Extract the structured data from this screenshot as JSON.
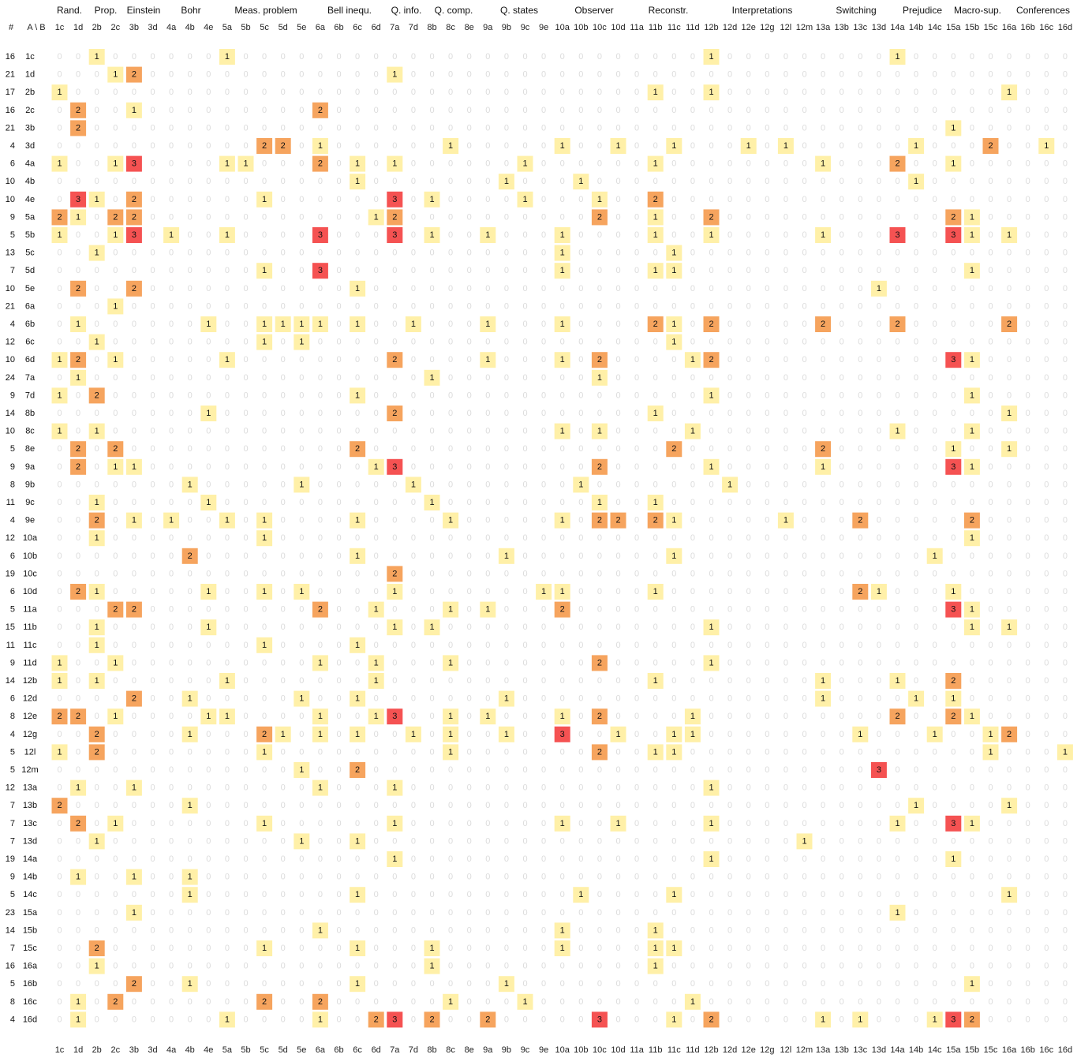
{
  "chart_data": {
    "type": "heatmap",
    "corner": {
      "num": "#",
      "ab": "A \\ B"
    },
    "groups": [
      "Rand.",
      "Prop.",
      "Einstein",
      "Bohr",
      "Meas. problem",
      "Bell inequ.",
      "Q. info.",
      "Q. comp.",
      "Q. states",
      "Observer",
      "Reconstr.",
      "Interpretations",
      "Switching",
      "Prejudice",
      "Macro-sup.",
      "Conferences"
    ],
    "columns": [
      "1c",
      "1d",
      "2b",
      "2c",
      "3b",
      "3d",
      "4a",
      "4b",
      "4e",
      "5a",
      "5b",
      "5c",
      "5d",
      "5e",
      "6a",
      "6b",
      "6c",
      "6d",
      "7a",
      "7d",
      "8b",
      "8c",
      "8e",
      "9a",
      "9b",
      "9c",
      "9e",
      "10a",
      "10b",
      "10c",
      "10d",
      "11a",
      "11b",
      "11c",
      "11d",
      "12b",
      "12d",
      "12e",
      "12g",
      "12l",
      "12m",
      "13a",
      "13b",
      "13c",
      "13d",
      "14a",
      "14b",
      "14c",
      "15a",
      "15b",
      "15c",
      "16a",
      "16b",
      "16c",
      "16d"
    ],
    "rows": [
      {
        "label": "1c",
        "count": "16",
        "cells": {
          "2b": 1,
          "5a": 1,
          "12b": 1,
          "14a": 1
        }
      },
      {
        "label": "1d",
        "count": "21",
        "cells": {
          "2c": 1,
          "3b": 2,
          "7a": 1
        }
      },
      {
        "label": "2b",
        "count": "17",
        "cells": {
          "1c": 1,
          "11b": 1,
          "12b": 1,
          "16a": 1
        }
      },
      {
        "label": "2c",
        "count": "16",
        "cells": {
          "1d": 2,
          "3b": 1,
          "6a": 2
        }
      },
      {
        "label": "3b",
        "count": "21",
        "cells": {
          "1d": 2,
          "15a": 1
        }
      },
      {
        "label": "3d",
        "count": "4",
        "cells": {
          "5c": 2,
          "5d": 2,
          "6a": 1,
          "8c": 1,
          "10a": 1,
          "10d": 1,
          "11c": 1,
          "12e": 1,
          "12l": 1,
          "14b": 1,
          "15c": 2,
          "16c": 1
        }
      },
      {
        "label": "4a",
        "count": "6",
        "cells": {
          "1c": 1,
          "2c": 1,
          "3b": 3,
          "5a": 1,
          "5b": 1,
          "6a": 2,
          "6c": 1,
          "7a": 1,
          "9c": 1,
          "11b": 1,
          "13a": 1,
          "14a": 2,
          "15a": 1
        }
      },
      {
        "label": "4b",
        "count": "10",
        "cells": {
          "6c": 1,
          "9b": 1,
          "10b": 1,
          "14b": 1
        }
      },
      {
        "label": "4e",
        "count": "10",
        "cells": {
          "1d": 3,
          "2b": 1,
          "3b": 2,
          "5c": 1,
          "7a": 3,
          "8b": 1,
          "9c": 1,
          "10c": 1,
          "11b": 2
        }
      },
      {
        "label": "5a",
        "count": "9",
        "cells": {
          "1c": 2,
          "1d": 1,
          "2c": 2,
          "3b": 2,
          "6d": 1,
          "7a": 2,
          "10c": 2,
          "11b": 1,
          "12b": 2,
          "15a": 2,
          "15b": 1
        }
      },
      {
        "label": "5b",
        "count": "5",
        "cells": {
          "1c": 1,
          "2c": 1,
          "3b": 3,
          "4a": 1,
          "5a": 1,
          "6a": 3,
          "7a": 3,
          "8b": 1,
          "9a": 1,
          "10a": 1,
          "11b": 1,
          "12b": 1,
          "13a": 1,
          "14a": 3,
          "15a": 3,
          "15b": 1,
          "16a": 1
        }
      },
      {
        "label": "5c",
        "count": "13",
        "cells": {
          "2b": 1,
          "10a": 1,
          "11c": 1
        }
      },
      {
        "label": "5d",
        "count": "7",
        "cells": {
          "5c": 1,
          "6a": 3,
          "10a": 1,
          "11b": 1,
          "11c": 1,
          "15b": 1
        }
      },
      {
        "label": "5e",
        "count": "10",
        "cells": {
          "1d": 2,
          "3b": 2,
          "6c": 1,
          "13d": 1
        }
      },
      {
        "label": "6a",
        "count": "21",
        "cells": {
          "2c": 1
        }
      },
      {
        "label": "6b",
        "count": "4",
        "cells": {
          "1d": 1,
          "4e": 1,
          "5c": 1,
          "5d": 1,
          "5e": 1,
          "6a": 1,
          "6c": 1,
          "7d": 1,
          "9a": 1,
          "10a": 1,
          "11b": 2,
          "11c": 1,
          "12b": 2,
          "13a": 2,
          "14a": 2,
          "16a": 2
        }
      },
      {
        "label": "6c",
        "count": "12",
        "cells": {
          "2b": 1,
          "5c": 1,
          "5e": 1,
          "11c": 1
        }
      },
      {
        "label": "6d",
        "count": "10",
        "cells": {
          "1c": 1,
          "1d": 2,
          "2c": 1,
          "5a": 1,
          "7a": 2,
          "9a": 1,
          "10a": 1,
          "10c": 2,
          "11d": 1,
          "12b": 2,
          "15a": 3,
          "15b": 1
        }
      },
      {
        "label": "7a",
        "count": "24",
        "cells": {
          "1d": 1,
          "8b": 1,
          "10c": 1
        }
      },
      {
        "label": "7d",
        "count": "9",
        "cells": {
          "1c": 1,
          "2b": 2,
          "6c": 1,
          "12b": 1,
          "15b": 1
        }
      },
      {
        "label": "8b",
        "count": "14",
        "cells": {
          "4e": 1,
          "7a": 2,
          "11b": 1,
          "16a": 1
        }
      },
      {
        "label": "8c",
        "count": "10",
        "cells": {
          "1c": 1,
          "2b": 1,
          "10a": 1,
          "10c": 1,
          "11d": 1,
          "14a": 1,
          "15b": 1
        }
      },
      {
        "label": "8e",
        "count": "5",
        "cells": {
          "1d": 2,
          "2c": 2,
          "6c": 2,
          "11c": 2,
          "13a": 2,
          "15a": 1,
          "16a": 1
        }
      },
      {
        "label": "9a",
        "count": "9",
        "cells": {
          "1d": 2,
          "2c": 1,
          "3b": 1,
          "6d": 1,
          "7a": 3,
          "10c": 2,
          "12b": 1,
          "13a": 1,
          "15a": 3,
          "15b": 1
        }
      },
      {
        "label": "9b",
        "count": "8",
        "cells": {
          "4b": 1,
          "5e": 1,
          "7d": 1,
          "10b": 1,
          "12d": 1
        }
      },
      {
        "label": "9c",
        "count": "11",
        "cells": {
          "2b": 1,
          "4e": 1,
          "8b": 1,
          "10c": 1,
          "11b": 1
        }
      },
      {
        "label": "9e",
        "count": "4",
        "cells": {
          "2b": 2,
          "3b": 1,
          "4a": 1,
          "5a": 1,
          "5c": 1,
          "6c": 1,
          "8c": 1,
          "10a": 1,
          "10c": 2,
          "10d": 2,
          "11b": 2,
          "11c": 1,
          "12l": 1,
          "13c": 2,
          "15b": 2
        }
      },
      {
        "label": "10a",
        "count": "12",
        "cells": {
          "2b": 1,
          "5c": 1,
          "15b": 1
        }
      },
      {
        "label": "10b",
        "count": "6",
        "cells": {
          "4b": 2,
          "6c": 1,
          "9b": 1,
          "11c": 1,
          "14c": 1
        }
      },
      {
        "label": "10c",
        "count": "19",
        "cells": {
          "7a": 2
        }
      },
      {
        "label": "10d",
        "count": "6",
        "cells": {
          "1d": 2,
          "2b": 1,
          "4e": 1,
          "5c": 1,
          "5e": 1,
          "7a": 1,
          "9e": 1,
          "10a": 1,
          "11b": 1,
          "13c": 2,
          "13d": 1,
          "15a": 1
        }
      },
      {
        "label": "11a",
        "count": "5",
        "cells": {
          "2c": 2,
          "3b": 2,
          "6a": 2,
          "6d": 1,
          "8c": 1,
          "9a": 1,
          "10a": 2,
          "15a": 3,
          "15b": 1
        }
      },
      {
        "label": "11b",
        "count": "15",
        "cells": {
          "2b": 1,
          "4e": 1,
          "7a": 1,
          "8b": 1,
          "12b": 1,
          "15b": 1,
          "16a": 1
        }
      },
      {
        "label": "11c",
        "count": "11",
        "cells": {
          "2b": 1,
          "5c": 1,
          "6c": 1
        }
      },
      {
        "label": "11d",
        "count": "9",
        "cells": {
          "1c": 1,
          "2c": 1,
          "6a": 1,
          "6d": 1,
          "8c": 1,
          "10c": 2,
          "12b": 1
        }
      },
      {
        "label": "12b",
        "count": "14",
        "cells": {
          "1c": 1,
          "2b": 1,
          "5a": 1,
          "6d": 1,
          "11b": 1,
          "13a": 1,
          "14a": 1,
          "15a": 2
        }
      },
      {
        "label": "12d",
        "count": "6",
        "cells": {
          "3b": 2,
          "4b": 1,
          "5e": 1,
          "6c": 1,
          "9b": 1,
          "13a": 1,
          "14b": 1,
          "15a": 1
        }
      },
      {
        "label": "12e",
        "count": "8",
        "cells": {
          "1c": 2,
          "1d": 2,
          "2c": 1,
          "4e": 1,
          "5a": 1,
          "6a": 1,
          "6d": 1,
          "7a": 3,
          "8c": 1,
          "9a": 1,
          "10a": 1,
          "10c": 2,
          "11d": 1,
          "14a": 2,
          "15a": 2,
          "15b": 1
        }
      },
      {
        "label": "12g",
        "count": "4",
        "cells": {
          "2b": 2,
          "4b": 1,
          "5c": 2,
          "5d": 1,
          "6a": 1,
          "6c": 1,
          "7d": 1,
          "8c": 1,
          "9b": 1,
          "10a": 3,
          "10d": 1,
          "11c": 1,
          "11d": 1,
          "13c": 1,
          "14c": 1,
          "15c": 1,
          "16a": 2
        }
      },
      {
        "label": "12l",
        "count": "5",
        "cells": {
          "1c": 1,
          "2b": 2,
          "5c": 1,
          "8c": 1,
          "10c": 2,
          "11b": 1,
          "11c": 1,
          "15c": 1,
          "16d": 1
        }
      },
      {
        "label": "12m",
        "count": "5",
        "cells": {
          "5e": 1,
          "6c": 2,
          "13d": 3
        }
      },
      {
        "label": "13a",
        "count": "12",
        "cells": {
          "1d": 1,
          "3b": 1,
          "6a": 1,
          "7a": 1,
          "12b": 1
        }
      },
      {
        "label": "13b",
        "count": "7",
        "cells": {
          "1c": 2,
          "4b": 1,
          "14b": 1,
          "16a": 1
        }
      },
      {
        "label": "13c",
        "count": "7",
        "cells": {
          "1d": 2,
          "2c": 1,
          "5c": 1,
          "7a": 1,
          "10a": 1,
          "10d": 1,
          "12b": 1,
          "14a": 1,
          "15a": 3,
          "15b": 1
        }
      },
      {
        "label": "13d",
        "count": "7",
        "cells": {
          "2b": 1,
          "5e": 1,
          "6c": 1,
          "12m": 1
        }
      },
      {
        "label": "14a",
        "count": "19",
        "cells": {
          "7a": 1,
          "12b": 1,
          "15a": 1
        }
      },
      {
        "label": "14b",
        "count": "9",
        "cells": {
          "1d": 1,
          "3b": 1,
          "4b": 1
        }
      },
      {
        "label": "14c",
        "count": "5",
        "cells": {
          "4b": 1,
          "6c": 1,
          "10b": 1,
          "11c": 1,
          "16a": 1
        }
      },
      {
        "label": "15a",
        "count": "23",
        "cells": {
          "3b": 1,
          "14a": 1
        }
      },
      {
        "label": "15b",
        "count": "14",
        "cells": {
          "6a": 1,
          "10a": 1,
          "11b": 1
        }
      },
      {
        "label": "15c",
        "count": "7",
        "cells": {
          "2b": 2,
          "5c": 1,
          "6c": 1,
          "8b": 1,
          "10a": 1,
          "11b": 1,
          "11c": 1
        }
      },
      {
        "label": "16a",
        "count": "16",
        "cells": {
          "2b": 1,
          "8b": 1,
          "11b": 1
        }
      },
      {
        "label": "16b",
        "count": "5",
        "cells": {
          "3b": 2,
          "4b": 1,
          "6c": 1,
          "9b": 1,
          "15b": 1
        }
      },
      {
        "label": "16c",
        "count": "8",
        "cells": {
          "1d": 1,
          "2c": 2,
          "5c": 2,
          "6a": 2,
          "8c": 1,
          "9c": 1,
          "11d": 1
        }
      },
      {
        "label": "16d",
        "count": "4",
        "cells": {
          "1d": 1,
          "5a": 1,
          "6a": 1,
          "6d": 2,
          "7a": 3,
          "8b": 2,
          "9a": 2,
          "10c": 3,
          "11c": 1,
          "12b": 2,
          "13a": 1,
          "13c": 1,
          "14c": 1,
          "15a": 3,
          "15b": 2
        }
      }
    ],
    "colors": {
      "1": "#fff0a8",
      "2": "#f6a45e",
      "3": "#f55252"
    },
    "zero_color": "#dcdcdc"
  }
}
